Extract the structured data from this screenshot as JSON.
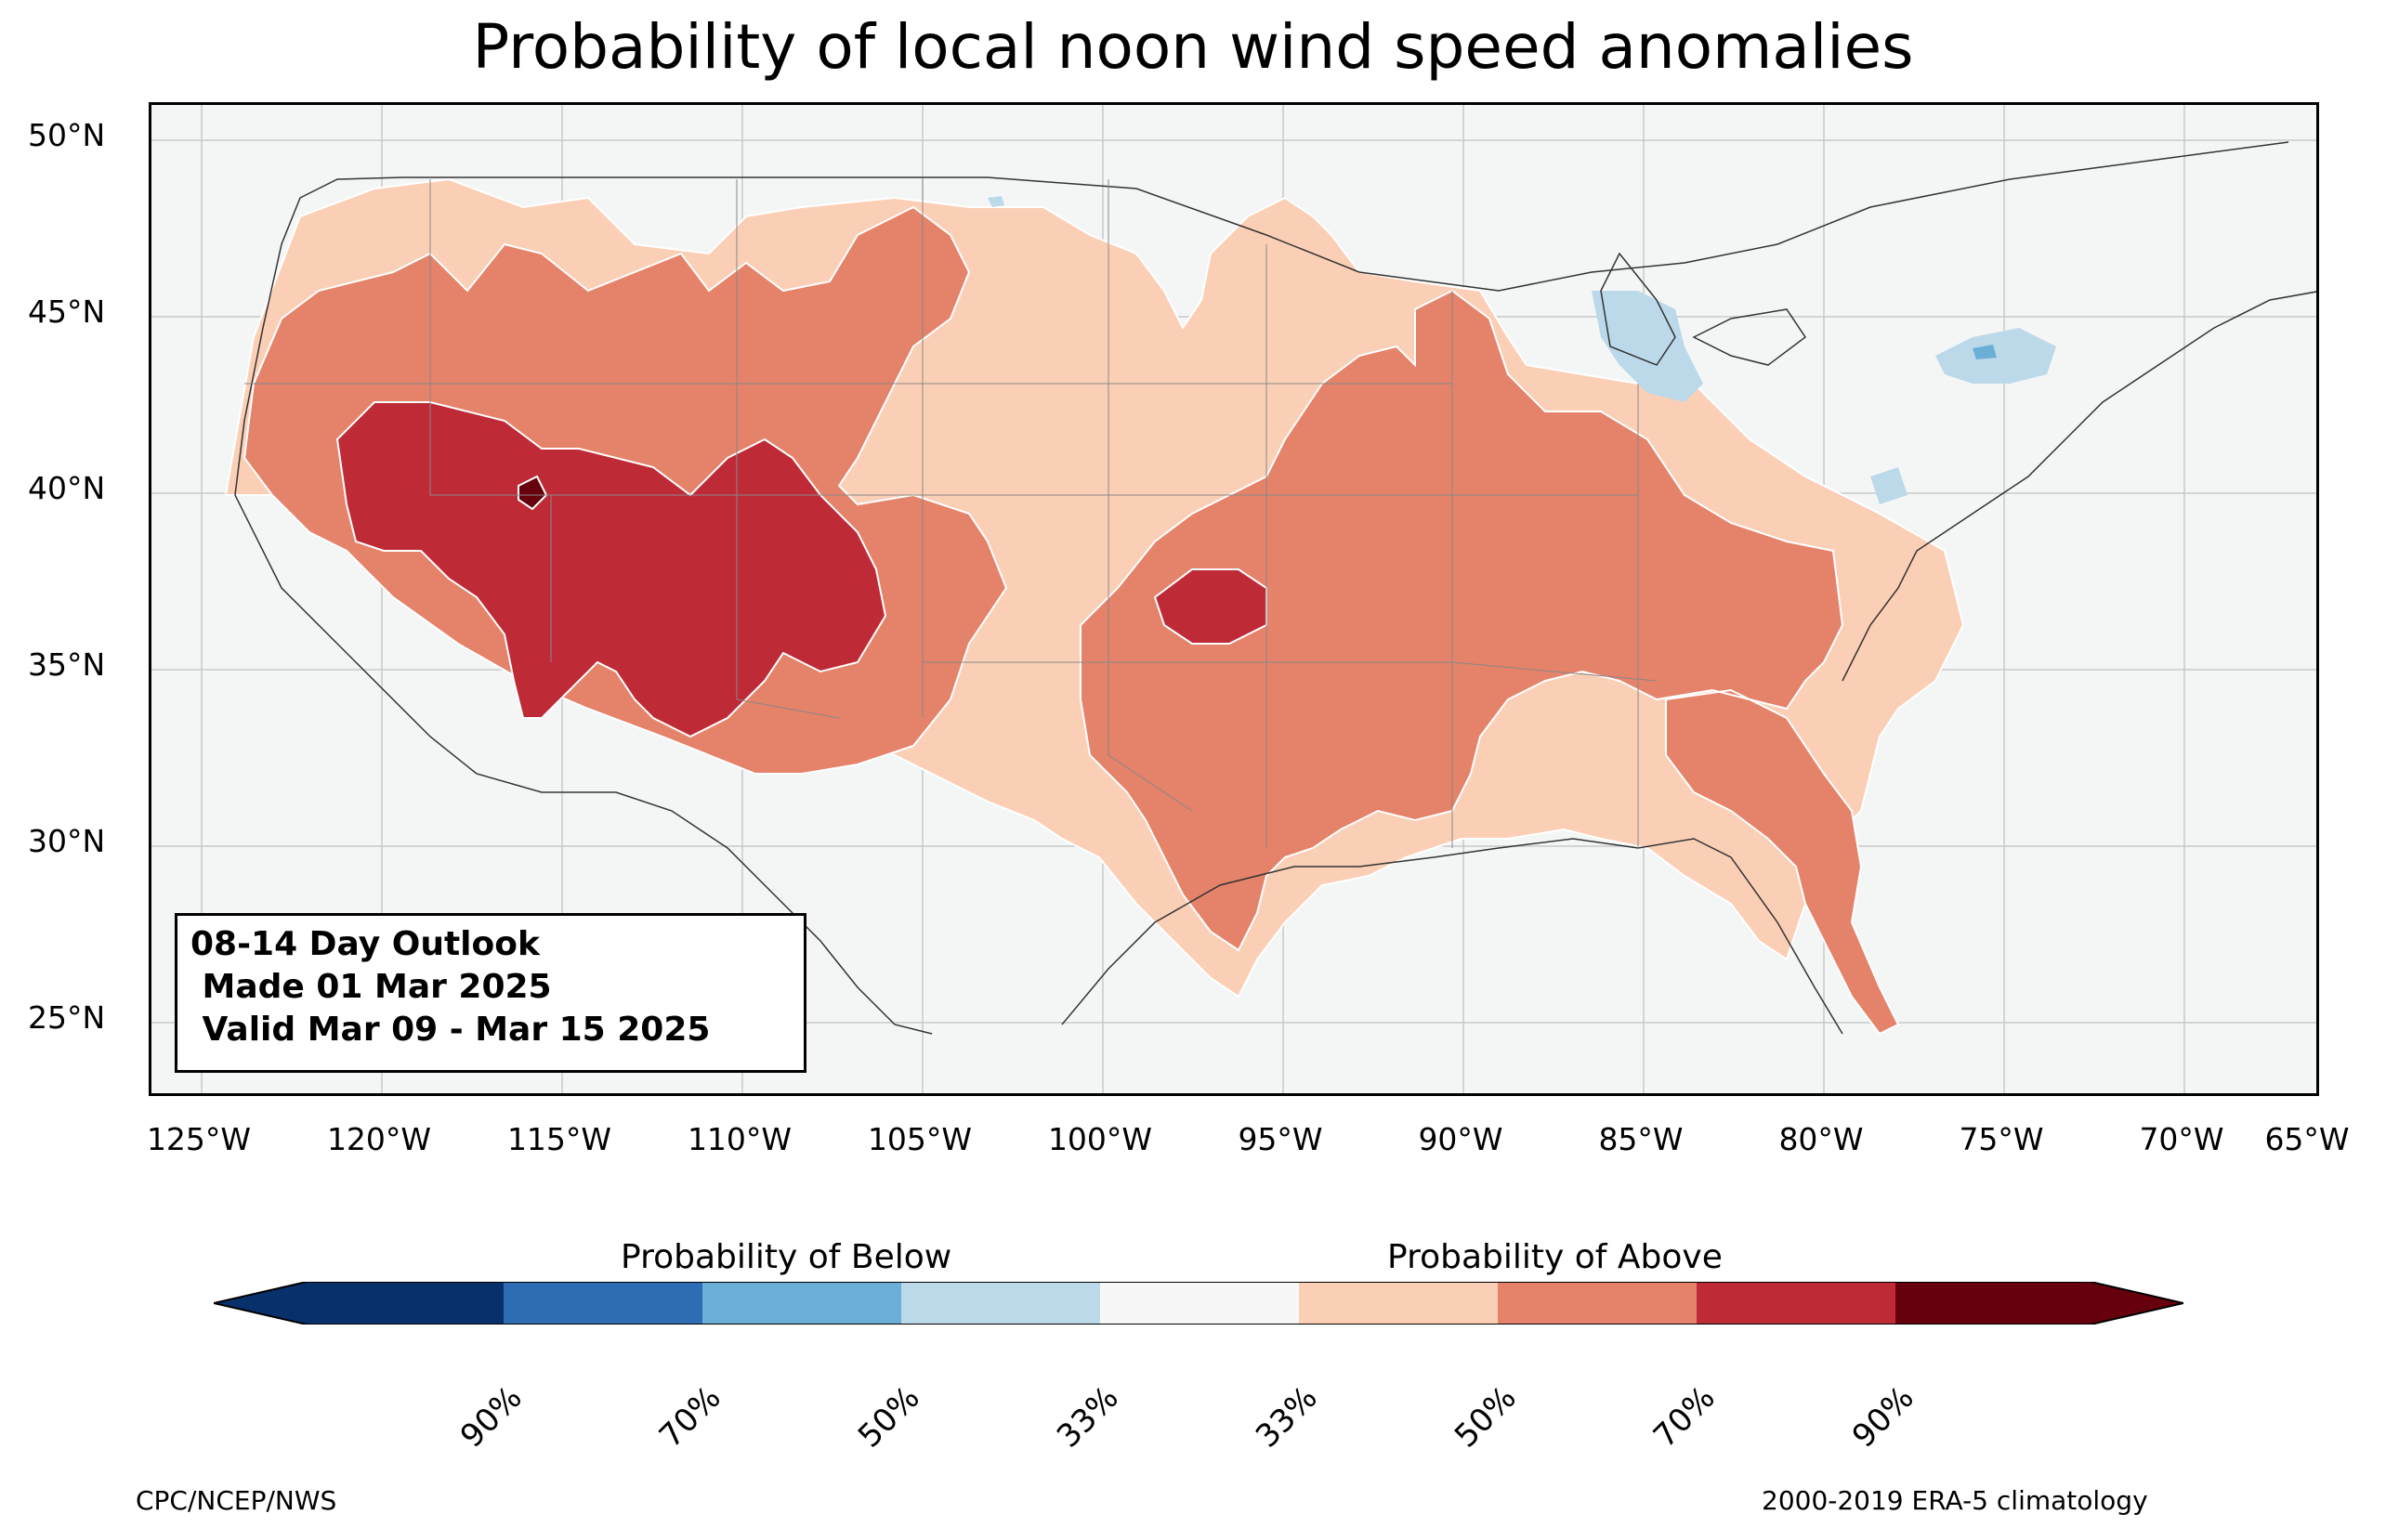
{
  "title": "Probability of local noon wind speed anomalies",
  "map": {
    "lat_labels": [
      "50°N",
      "45°N",
      "40°N",
      "35°N",
      "30°N",
      "25°N"
    ],
    "lon_labels": [
      "125°W",
      "120°W",
      "115°W",
      "110°W",
      "105°W",
      "100°W",
      "95°W",
      "90°W",
      "85°W",
      "80°W",
      "75°W",
      "70°W",
      "65°W"
    ],
    "background_color": "#f4f6f6"
  },
  "info_box": {
    "line1": "08-14 Day Outlook",
    "line2": " Made 01 Mar 2025",
    "line3": " Valid Mar 09 - Mar 15 2025"
  },
  "colorbar": {
    "below_label": "Probability of Below",
    "above_label": "Probability of Above",
    "tick_labels": [
      "90%",
      "70%",
      "50%",
      "33%",
      "33%",
      "50%",
      "70%",
      "90%"
    ],
    "colors": [
      "#08306b",
      "#2e6db4",
      "#6baed6",
      "#bcd9ea",
      "#f7f7f7",
      "#fbcfb5",
      "#e5826a",
      "#be2b37",
      "#67000d"
    ]
  },
  "footer": {
    "left": "CPC/NCEP/NWS",
    "right": "2000-2019 ERA-5 climatology"
  }
}
